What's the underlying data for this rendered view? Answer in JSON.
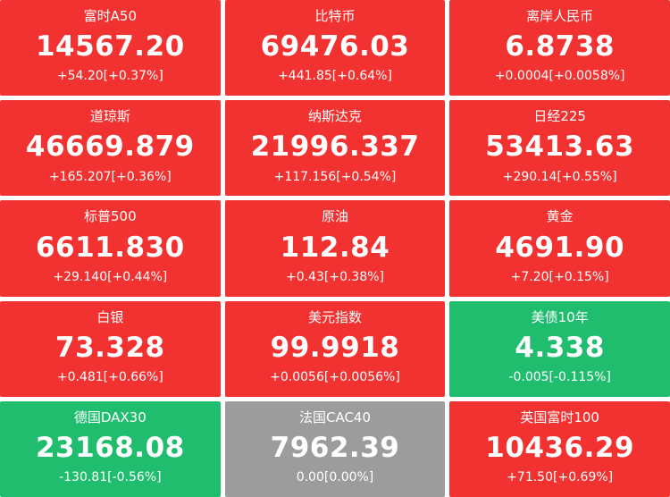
{
  "colors": {
    "up": "#f23131",
    "down": "#21bd6f",
    "flat": "#9c9c9c",
    "text": "#ffffff"
  },
  "tiles": [
    {
      "label": "富时A50",
      "value": "14567.20",
      "change": "+54.20[+0.37%]",
      "state": "up"
    },
    {
      "label": "比特币",
      "value": "69476.03",
      "change": "+441.85[+0.64%]",
      "state": "up"
    },
    {
      "label": "离岸人民币",
      "value": "6.8738",
      "change": "+0.0004[+0.0058%]",
      "state": "up"
    },
    {
      "label": "道琼斯",
      "value": "46669.879",
      "change": "+165.207[+0.36%]",
      "state": "up"
    },
    {
      "label": "纳斯达克",
      "value": "21996.337",
      "change": "+117.156[+0.54%]",
      "state": "up"
    },
    {
      "label": "日经225",
      "value": "53413.63",
      "change": "+290.14[+0.55%]",
      "state": "up"
    },
    {
      "label": "标普500",
      "value": "6611.830",
      "change": "+29.140[+0.44%]",
      "state": "up"
    },
    {
      "label": "原油",
      "value": "112.84",
      "change": "+0.43[+0.38%]",
      "state": "up"
    },
    {
      "label": "黄金",
      "value": "4691.90",
      "change": "+7.20[+0.15%]",
      "state": "up"
    },
    {
      "label": "白银",
      "value": "73.328",
      "change": "+0.481[+0.66%]",
      "state": "up"
    },
    {
      "label": "美元指数",
      "value": "99.9918",
      "change": "+0.0056[+0.0056%]",
      "state": "up"
    },
    {
      "label": "美债10年",
      "value": "4.338",
      "change": "-0.005[-0.115%]",
      "state": "down"
    },
    {
      "label": "德国DAX30",
      "value": "23168.08",
      "change": "-130.81[-0.56%]",
      "state": "down"
    },
    {
      "label": "法国CAC40",
      "value": "7962.39",
      "change": "0.00[0.00%]",
      "state": "flat"
    },
    {
      "label": "英国富时100",
      "value": "10436.29",
      "change": "+71.50[+0.69%]",
      "state": "up"
    }
  ]
}
